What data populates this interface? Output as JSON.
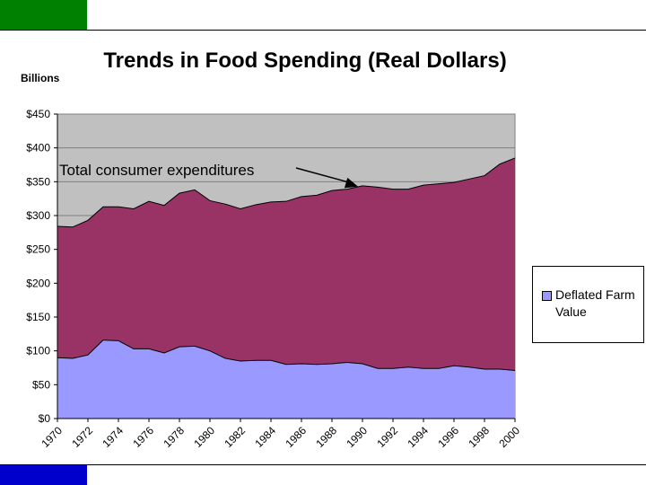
{
  "slide": {
    "top_bar_color": "#008000",
    "bottom_bar_color": "#0000cc"
  },
  "chart_data": {
    "type": "area",
    "title": "Trends in Food Spending (Real Dollars)",
    "ylabel": "Billions",
    "xlabel": "",
    "ylim": [
      0,
      450
    ],
    "y_ticks": [
      0,
      50,
      100,
      150,
      200,
      250,
      300,
      350,
      400,
      450
    ],
    "y_tick_labels": [
      "$0",
      "$50",
      "$100",
      "$150",
      "$200",
      "$250",
      "$300",
      "$350",
      "$400",
      "$450"
    ],
    "x_tick_labels": [
      "1970",
      "1972",
      "1974",
      "1976",
      "1978",
      "1980",
      "1982",
      "1984",
      "1986",
      "1988",
      "1990",
      "1992",
      "1994",
      "1996",
      "1998",
      "2000"
    ],
    "grid": true,
    "plot_background": "#c0c0c0",
    "years": [
      1970,
      1971,
      1972,
      1973,
      1974,
      1975,
      1976,
      1977,
      1978,
      1979,
      1980,
      1981,
      1982,
      1983,
      1984,
      1985,
      1986,
      1987,
      1988,
      1989,
      1990,
      1991,
      1992,
      1993,
      1994,
      1995,
      1996,
      1997,
      1998,
      1999,
      2000
    ],
    "series": [
      {
        "name": "Deflated Farm Value",
        "color": "#9999ff",
        "values": [
          90,
          89,
          94,
          116,
          115,
          103,
          103,
          97,
          106,
          107,
          100,
          89,
          85,
          86,
          86,
          80,
          81,
          80,
          81,
          83,
          81,
          74,
          74,
          76,
          74,
          74,
          78,
          76,
          73,
          73,
          71
        ]
      },
      {
        "name": "Total consumer expenditures",
        "color": "#993366",
        "values": [
          284,
          283,
          293,
          313,
          313,
          310,
          321,
          315,
          333,
          338,
          322,
          317,
          310,
          316,
          320,
          321,
          328,
          330,
          337,
          339,
          344,
          342,
          339,
          339,
          345,
          347,
          349,
          354,
          359,
          376,
          385
        ]
      }
    ],
    "legend": {
      "position": "right",
      "entries": [
        "Deflated Farm Value"
      ]
    },
    "annotations": [
      {
        "text": "Total consumer expenditures",
        "points_to": "Total consumer expenditures",
        "arrow_at_year": 1990,
        "arrow_at_value": 343
      }
    ]
  }
}
